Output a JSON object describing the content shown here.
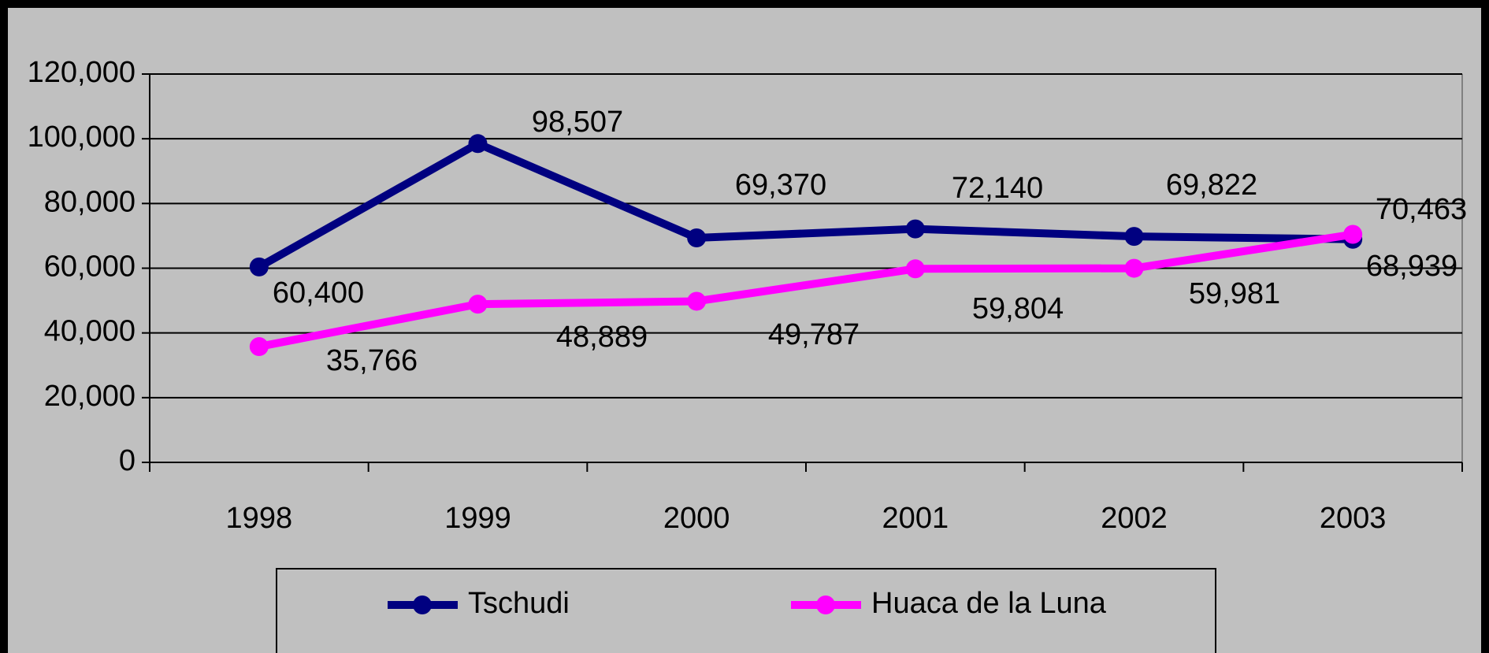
{
  "chart_data": {
    "type": "line",
    "categories": [
      "1998",
      "1999",
      "2000",
      "2001",
      "2002",
      "2003"
    ],
    "series": [
      {
        "name": "Tschudi",
        "color": "#000080",
        "values": [
          60400,
          98507,
          69370,
          72140,
          69822,
          68939
        ],
        "value_labels": [
          "60,400",
          "98,507",
          "69,370",
          "72,140",
          "69,822",
          "68,939"
        ]
      },
      {
        "name": "Huaca de la Luna",
        "color": "#ff00ff",
        "values": [
          35766,
          48889,
          49787,
          59804,
          59981,
          70463
        ],
        "value_labels": [
          "35,766",
          "48,889",
          "49,787",
          "59,804",
          "59,981",
          "70,463"
        ]
      }
    ],
    "ylim": [
      0,
      120000
    ],
    "yticks": [
      0,
      {
        "value": 20000,
        "label": "20,000"
      },
      {
        "value": 40000,
        "label": "40,000"
      },
      {
        "value": 60000,
        "label": "60,000"
      },
      {
        "value": 80000,
        "label": "80,000"
      },
      {
        "value": 100000,
        "label": "100,000"
      },
      {
        "value": 120000,
        "label": "120,000"
      }
    ],
    "grid": true,
    "legend": "bottom"
  }
}
